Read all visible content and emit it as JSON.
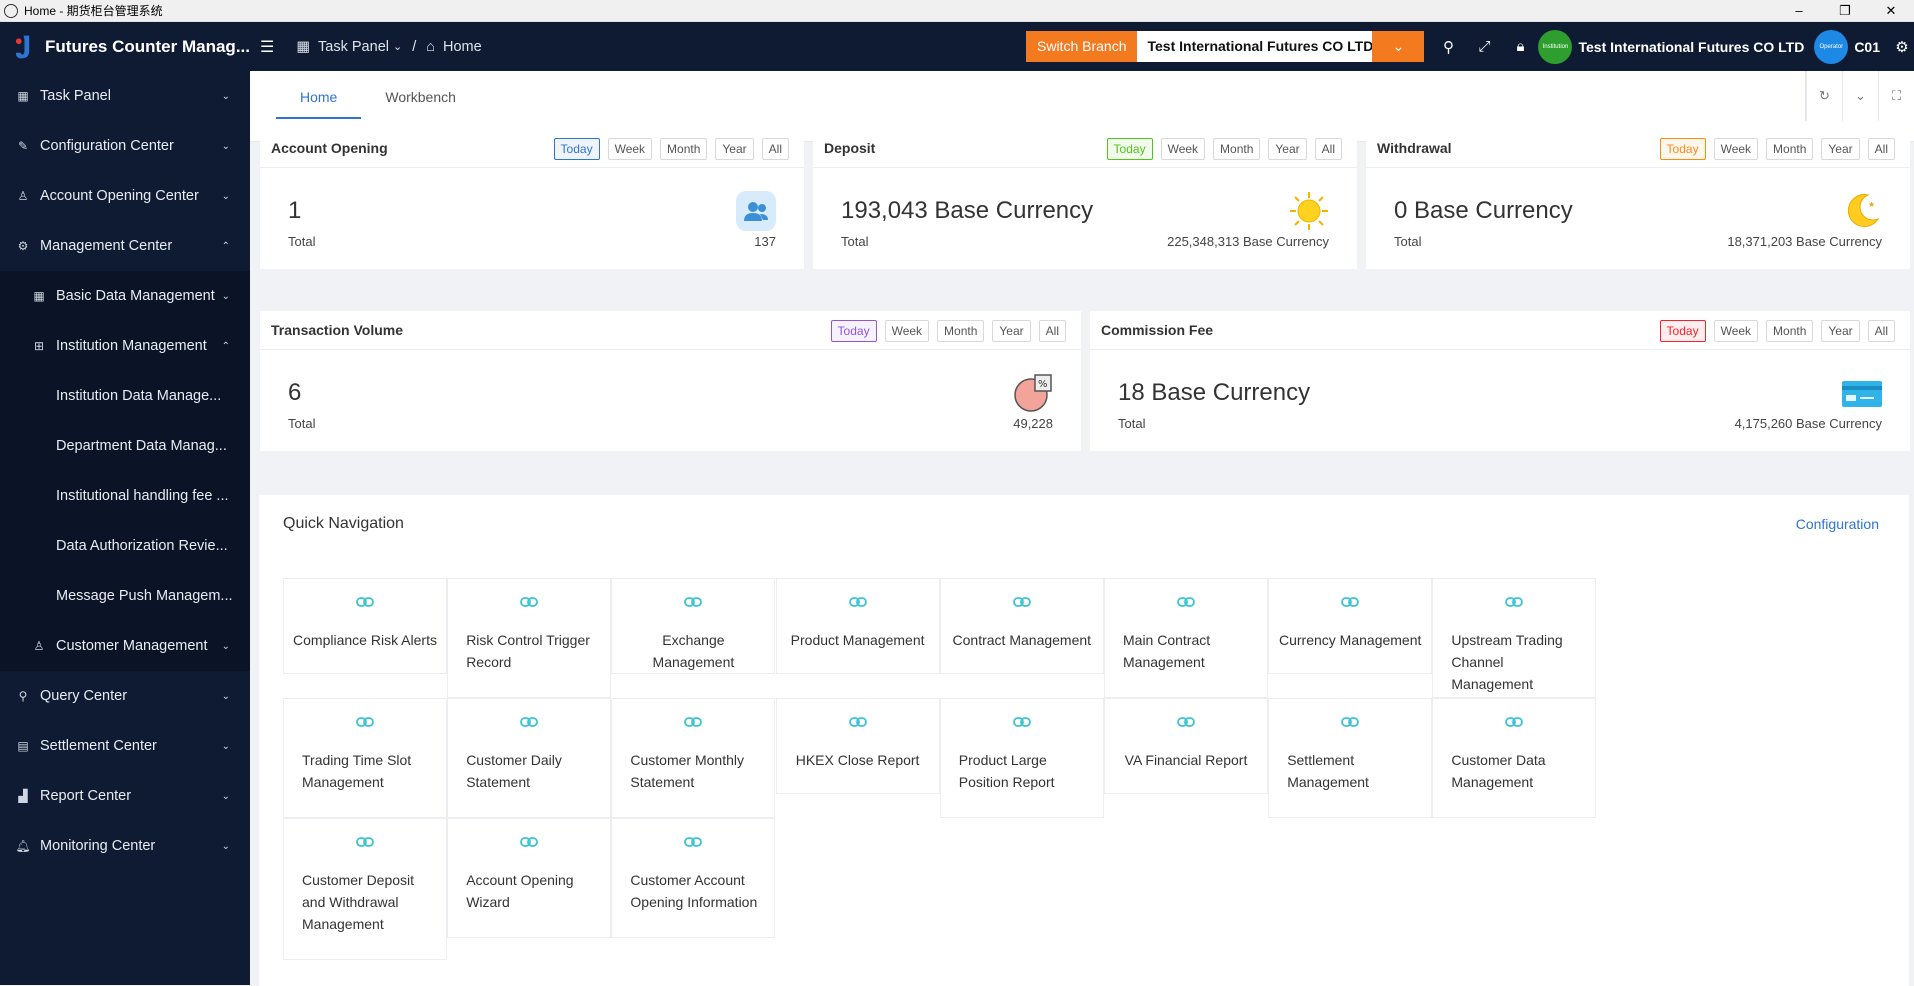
{
  "window": {
    "title": "Home - 期货柜台管理系统",
    "controls": [
      "–",
      "❐",
      "✕"
    ]
  },
  "brand": {
    "name": "Futures Counter Manag..."
  },
  "sidebar": {
    "items": [
      {
        "label": "Task Panel",
        "icon": "grid-icon",
        "arrow": "⌄",
        "level": 1
      },
      {
        "label": "Configuration Center",
        "icon": "wrench-icon",
        "arrow": "⌄",
        "level": 1
      },
      {
        "label": "Account Opening Center",
        "icon": "user-icon",
        "arrow": "⌄",
        "level": 1
      },
      {
        "label": "Management Center",
        "icon": "gear-icon",
        "arrow": "⌃",
        "level": 1
      },
      {
        "label": "Basic Data Management",
        "icon": "grid-icon",
        "arrow": "⌄",
        "level": 2
      },
      {
        "label": "Institution Management",
        "icon": "sitemap-icon",
        "arrow": "⌃",
        "level": 2
      },
      {
        "label": "Institution Data Manage...",
        "level": 3
      },
      {
        "label": "Department Data Manag...",
        "level": 3
      },
      {
        "label": "Institutional handling fee ...",
        "level": 3
      },
      {
        "label": "Data Authorization Revie...",
        "level": 3
      },
      {
        "label": "Message Push Managem...",
        "level": 3
      },
      {
        "label": "Customer Management",
        "icon": "user-icon",
        "arrow": "⌄",
        "level": 2
      },
      {
        "label": "Query Center",
        "icon": "search-icon",
        "arrow": "⌄",
        "level": 1
      },
      {
        "label": "Settlement Center",
        "icon": "ledger-icon",
        "arrow": "⌄",
        "level": 1
      },
      {
        "label": "Report Center",
        "icon": "chart-icon",
        "arrow": "⌄",
        "level": 1
      },
      {
        "label": "Monitoring Center",
        "icon": "bell-icon",
        "arrow": "⌄",
        "level": 1
      }
    ]
  },
  "topbar": {
    "task_panel": "Task Panel",
    "separator": "/",
    "home": "Home",
    "switch_branch": "Switch Branch",
    "branch_name": "Test International Futures CO LTD",
    "org_avatar": "Institution",
    "org_name": "Test International Futures CO LTD",
    "operator_avatar": "Operator",
    "operator_code": "C01"
  },
  "tabs": [
    {
      "label": "Home",
      "active": true
    },
    {
      "label": "Workbench",
      "active": false
    }
  ],
  "filters": [
    "Today",
    "Week",
    "Month",
    "Year",
    "All"
  ],
  "cards": {
    "account_opening": {
      "title": "Account Opening",
      "value": "1",
      "total_label": "Total",
      "total": "137",
      "accent": "#2f74d0"
    },
    "deposit": {
      "title": "Deposit",
      "value": "193,043 Base Currency",
      "total_label": "Total",
      "total": "225,348,313 Base Currency",
      "accent": "#52c41a"
    },
    "withdrawal": {
      "title": "Withdrawal",
      "value": "0 Base Currency",
      "total_label": "Total",
      "total": "18,371,203 Base Currency",
      "accent": "#fa8c16"
    },
    "transaction_volume": {
      "title": "Transaction Volume",
      "value": "6",
      "total_label": "Total",
      "total": "49,228",
      "accent": "#9254de"
    },
    "commission_fee": {
      "title": "Commission Fee",
      "value": "18 Base Currency",
      "total_label": "Total",
      "total": "4,175,260 Base Currency",
      "accent": "#f5222d"
    }
  },
  "quick_nav": {
    "title": "Quick Navigation",
    "config": "Configuration",
    "items": [
      "Compliance Risk Alerts",
      "Risk Control Trigger Record",
      "Exchange Management",
      "Product Management",
      "Contract Management",
      "Main Contract Management",
      "Currency Management",
      "Upstream Trading Channel Management",
      "Trading Time Slot Management",
      "Customer Daily Statement",
      "Customer Monthly Statement",
      "HKEX Close Report",
      "Product Large Position Report",
      "VA Financial Report",
      "Settlement Management",
      "Customer Data Management",
      "Customer Deposit and Withdrawal Management",
      "Account Opening Wizard",
      "Customer Account Opening Information"
    ]
  }
}
